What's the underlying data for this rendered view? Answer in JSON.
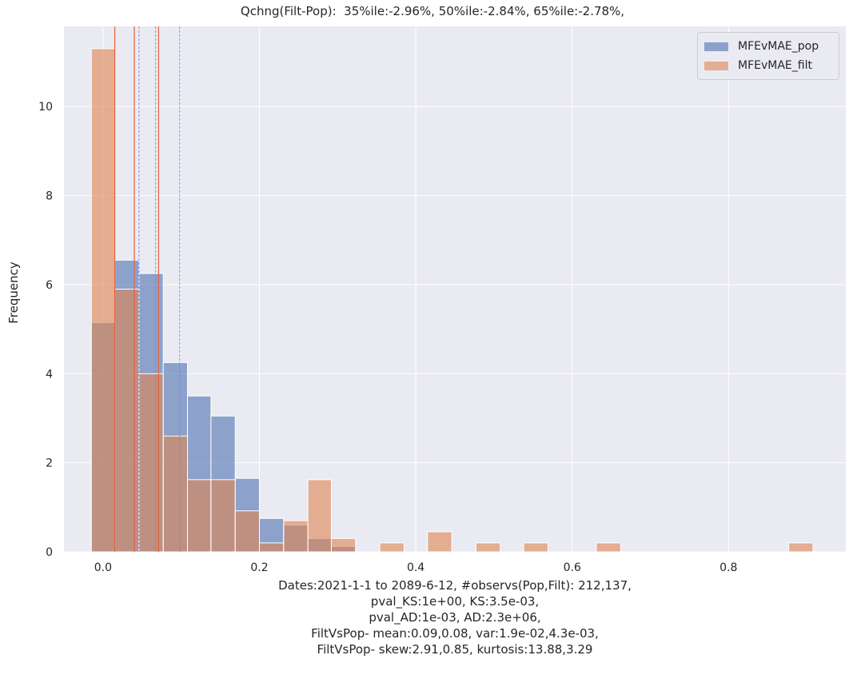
{
  "chart_data": {
    "type": "bar",
    "title": "Qchng(Filt-Pop):  35%ile:-2.96%, 50%ile:-2.84%, 65%ile:-2.78%,",
    "xlabel_lines": [
      "Dates:2021-1-1 to 2089-6-12, #observs(Pop,Filt): 212,137,",
      "pval_KS:1e+00, KS:3.5e-03,",
      "pval_AD:1e-03, AD:2.3e+06,",
      "FiltVsPop- mean:0.09,0.08, var:1.9e-02,4.3e-03,",
      "FiltVsPop- skew:2.91,0.85, kurtosis:13.88,3.29"
    ],
    "ylabel": "Frequency",
    "xlim": [
      -0.05,
      0.95
    ],
    "ylim": [
      0,
      11.8
    ],
    "xticks": [
      0.0,
      0.2,
      0.4,
      0.6,
      0.8
    ],
    "xtick_labels": [
      "0.0",
      "0.2",
      "0.4",
      "0.6",
      "0.8"
    ],
    "yticks": [
      0,
      2,
      4,
      6,
      8,
      10
    ],
    "ytick_labels": [
      "0",
      "2",
      "4",
      "6",
      "8",
      "10"
    ],
    "series": [
      {
        "name": "MFEvMAE_pop",
        "color": "#4c72b0",
        "bins": [
          {
            "x0": -0.015,
            "x1": 0.015,
            "y": 5.15
          },
          {
            "x0": 0.015,
            "x1": 0.046,
            "y": 6.55
          },
          {
            "x0": 0.046,
            "x1": 0.077,
            "y": 6.25
          },
          {
            "x0": 0.077,
            "x1": 0.108,
            "y": 4.25
          },
          {
            "x0": 0.108,
            "x1": 0.138,
            "y": 3.5
          },
          {
            "x0": 0.138,
            "x1": 0.169,
            "y": 3.05
          },
          {
            "x0": 0.169,
            "x1": 0.2,
            "y": 1.65
          },
          {
            "x0": 0.2,
            "x1": 0.231,
            "y": 0.75
          },
          {
            "x0": 0.231,
            "x1": 0.262,
            "y": 0.6
          },
          {
            "x0": 0.262,
            "x1": 0.292,
            "y": 0.3
          },
          {
            "x0": 0.292,
            "x1": 0.323,
            "y": 0.12
          }
        ]
      },
      {
        "name": "MFEvMAE_filt",
        "color": "#dd8452",
        "bins": [
          {
            "x0": -0.015,
            "x1": 0.015,
            "y": 11.3
          },
          {
            "x0": 0.015,
            "x1": 0.046,
            "y": 5.9
          },
          {
            "x0": 0.046,
            "x1": 0.077,
            "y": 4.0
          },
          {
            "x0": 0.077,
            "x1": 0.108,
            "y": 2.6
          },
          {
            "x0": 0.108,
            "x1": 0.138,
            "y": 1.62
          },
          {
            "x0": 0.138,
            "x1": 0.169,
            "y": 1.62
          },
          {
            "x0": 0.169,
            "x1": 0.2,
            "y": 0.92
          },
          {
            "x0": 0.2,
            "x1": 0.231,
            "y": 0.2
          },
          {
            "x0": 0.231,
            "x1": 0.262,
            "y": 0.7
          },
          {
            "x0": 0.262,
            "x1": 0.292,
            "y": 1.62
          },
          {
            "x0": 0.292,
            "x1": 0.323,
            "y": 0.3
          },
          {
            "x0": 0.354,
            "x1": 0.385,
            "y": 0.2
          },
          {
            "x0": 0.415,
            "x1": 0.446,
            "y": 0.45
          },
          {
            "x0": 0.477,
            "x1": 0.508,
            "y": 0.2
          },
          {
            "x0": 0.538,
            "x1": 0.569,
            "y": 0.2
          },
          {
            "x0": 0.631,
            "x1": 0.662,
            "y": 0.2
          },
          {
            "x0": 0.877,
            "x1": 0.908,
            "y": 0.2
          }
        ]
      }
    ],
    "vlines": [
      {
        "x": 0.015,
        "color": "#e8603c",
        "style": "solid"
      },
      {
        "x": 0.04,
        "color": "#e8603c",
        "style": "solid"
      },
      {
        "x": 0.071,
        "color": "#e8603c",
        "style": "solid"
      },
      {
        "x": 0.046,
        "color": "#7a7adf",
        "style": "dashed"
      },
      {
        "x": 0.067,
        "color": "#7a7adf",
        "style": "dashed"
      },
      {
        "x": 0.098,
        "color": "#7a7adf",
        "style": "dashed"
      }
    ],
    "legend": {
      "position": "top-right",
      "entries": [
        {
          "label": "MFEvMAE_pop",
          "color": "#4c72b0"
        },
        {
          "label": "MFEvMAE_filt",
          "color": "#dd8452"
        }
      ]
    },
    "colors": {
      "background": "#eaeaf2",
      "grid": "#ffffff"
    }
  }
}
